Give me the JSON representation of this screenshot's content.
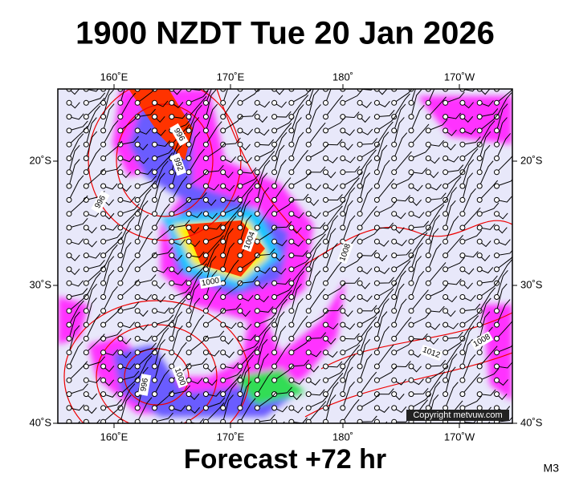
{
  "title": "1900 NZDT Tue 20 Jan 2026",
  "map": {
    "top_longitude_labels": [
      "160˚E",
      "170˚E",
      "180˚",
      "170˚W"
    ],
    "bottom_longitude_labels": [
      "160˚E",
      "170˚E",
      "180˚",
      "170˚W"
    ],
    "left_latitude_labels": [
      "20˚S",
      "30˚S",
      "40˚S"
    ],
    "right_latitude_labels": [
      "20˚S",
      "30˚S",
      "40˚S"
    ],
    "contour_labels": [
      "996",
      "992",
      "996",
      "1004",
      "1008",
      "1000",
      "1012",
      "1008",
      "1000",
      "996"
    ]
  },
  "copyright": "Copyright metvuw.com",
  "footer": "Forecast +72 hr",
  "model": "M3"
}
